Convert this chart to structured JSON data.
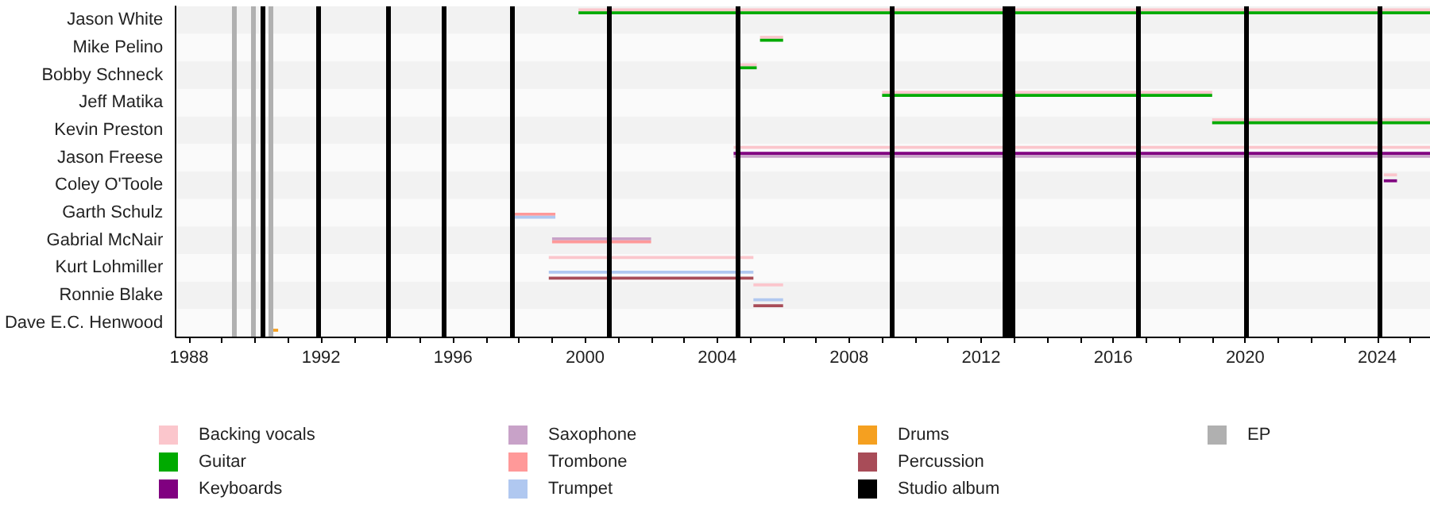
{
  "chart_data": {
    "type": "bar",
    "orientation": "horizontal",
    "categories": [
      "Jason White",
      "Mike Pelino",
      "Bobby Schneck",
      "Jeff Matika",
      "Kevin Preston",
      "Jason Freese",
      "Coley O'Toole",
      "Garth Schulz",
      "Gabrial McNair",
      "Kurt Lohmiller",
      "Ronnie Blake",
      "Dave E.C. Henwood"
    ],
    "series": [
      {
        "name": "Backing vocals",
        "color": "#fbc6cc",
        "base": [
          1999.8,
          2005.3,
          2004.7,
          2009.0,
          2019.0,
          2004.5,
          2024.2,
          null,
          null,
          1998.9,
          2005.1,
          null
        ],
        "values": [
          25.8,
          0.7,
          0.5,
          10.0,
          6.6,
          21.1,
          0.4,
          null,
          null,
          6.2,
          0.9,
          null
        ]
      },
      {
        "name": "Guitar",
        "color": "#00aa00",
        "base": [
          1999.8,
          2005.3,
          2004.7,
          2009.0,
          2019.0,
          null,
          null,
          null,
          null,
          null,
          null,
          null
        ],
        "values": [
          25.8,
          0.7,
          0.5,
          10.0,
          6.6,
          null,
          null,
          null,
          null,
          null,
          null,
          null
        ]
      },
      {
        "name": "Keyboards",
        "color": "#800080",
        "base": [
          null,
          null,
          null,
          null,
          null,
          2004.5,
          2024.2,
          null,
          null,
          null,
          null,
          null
        ],
        "values": [
          null,
          null,
          null,
          null,
          null,
          21.1,
          0.4,
          null,
          null,
          null,
          null,
          null
        ]
      },
      {
        "name": "Saxophone",
        "color": "#c8a2c8",
        "base": [
          null,
          null,
          null,
          null,
          null,
          2004.5,
          null,
          null,
          1999.0,
          null,
          null,
          null
        ],
        "values": [
          null,
          null,
          null,
          null,
          null,
          21.1,
          null,
          null,
          3.0,
          null,
          null,
          null
        ]
      },
      {
        "name": "Trombone",
        "color": "#ff9999",
        "base": [
          null,
          null,
          null,
          null,
          null,
          null,
          null,
          1997.8,
          1999.0,
          null,
          null,
          null
        ],
        "values": [
          null,
          null,
          null,
          null,
          null,
          null,
          null,
          1.3,
          3.0,
          null,
          null,
          null
        ]
      },
      {
        "name": "Trumpet",
        "color": "#b0c8f0",
        "base": [
          null,
          null,
          null,
          null,
          null,
          null,
          null,
          1997.8,
          null,
          1998.9,
          2005.1,
          null
        ],
        "values": [
          null,
          null,
          null,
          null,
          null,
          null,
          null,
          1.3,
          null,
          6.2,
          0.9,
          null
        ]
      },
      {
        "name": "Drums",
        "color": "#f5a020",
        "base": [
          null,
          null,
          null,
          null,
          null,
          null,
          null,
          null,
          null,
          null,
          null,
          1990.55
        ],
        "values": [
          null,
          null,
          null,
          null,
          null,
          null,
          null,
          null,
          null,
          null,
          null,
          0.15
        ]
      },
      {
        "name": "Percussion",
        "color": "#a84c58",
        "base": [
          null,
          null,
          null,
          null,
          null,
          null,
          null,
          null,
          null,
          1998.9,
          2005.1,
          null
        ],
        "values": [
          null,
          null,
          null,
          null,
          null,
          null,
          null,
          null,
          null,
          6.2,
          0.9,
          null
        ]
      }
    ],
    "xlim": [
      1987.6,
      2025.6
    ],
    "xticks": [
      1988,
      {
        "value": 1989,
        "label": null
      },
      {
        "value": 1990,
        "label": null
      },
      {
        "value": 1991,
        "label": null
      },
      1992,
      {
        "value": 1993,
        "label": null
      },
      {
        "value": 1994,
        "label": null
      },
      {
        "value": 1995,
        "label": null
      },
      1996,
      {
        "value": 1997,
        "label": null
      },
      {
        "value": 1998,
        "label": null
      },
      {
        "value": 1999,
        "label": null
      },
      2000,
      {
        "value": 2001,
        "label": null
      },
      {
        "value": 2002,
        "label": null
      },
      {
        "value": 2003,
        "label": null
      },
      2004,
      {
        "value": 2005,
        "label": null
      },
      {
        "value": 2006,
        "label": null
      },
      {
        "value": 2007,
        "label": null
      },
      2008,
      {
        "value": 2009,
        "label": null
      },
      {
        "value": 2010,
        "label": null
      },
      {
        "value": 2011,
        "label": null
      },
      2012,
      {
        "value": 2013,
        "label": null
      },
      {
        "value": 2014,
        "label": null
      },
      {
        "value": 2015,
        "label": null
      },
      2016,
      {
        "value": 2017,
        "label": null
      },
      {
        "value": 2018,
        "label": null
      },
      {
        "value": 2019,
        "label": null
      },
      2020,
      {
        "value": 2021,
        "label": null
      },
      {
        "value": 2022,
        "label": null
      },
      {
        "value": 2023,
        "label": null
      },
      2024,
      {
        "value": 2025,
        "label": null
      }
    ],
    "ref_lines": [
      {
        "axis": "x",
        "value": 1990.25,
        "label": "Studio album",
        "color": "#000000"
      },
      {
        "axis": "x",
        "value": 1991.9,
        "color": "#000000"
      },
      {
        "axis": "x",
        "value": 1994.05,
        "color": "#000000"
      },
      {
        "axis": "x",
        "value": 1995.7,
        "color": "#000000"
      },
      {
        "axis": "x",
        "value": 1997.8,
        "color": "#000000"
      },
      {
        "axis": "x",
        "value": 2000.7,
        "color": "#000000"
      },
      {
        "axis": "x",
        "value": 2004.6,
        "color": "#000000"
      },
      {
        "axis": "x",
        "value": 2009.3,
        "color": "#000000"
      },
      {
        "axis": "x",
        "value": 2012.7,
        "color": "#000000"
      },
      {
        "axis": "x",
        "value": 2012.8,
        "color": "#000000"
      },
      {
        "axis": "x",
        "value": 2012.95,
        "color": "#000000"
      },
      {
        "axis": "x",
        "value": 2016.75,
        "color": "#000000"
      },
      {
        "axis": "x",
        "value": 2020.05,
        "color": "#000000"
      },
      {
        "axis": "x",
        "value": 2024.05,
        "color": "#000000"
      },
      {
        "axis": "x",
        "value": 1989.35,
        "label": "EP",
        "color": "#b0b0b0"
      },
      {
        "axis": "x",
        "value": 1989.95,
        "color": "#b0b0b0"
      },
      {
        "axis": "x",
        "value": 1990.45,
        "color": "#b0b0b0"
      }
    ],
    "legend": "bottom"
  }
}
